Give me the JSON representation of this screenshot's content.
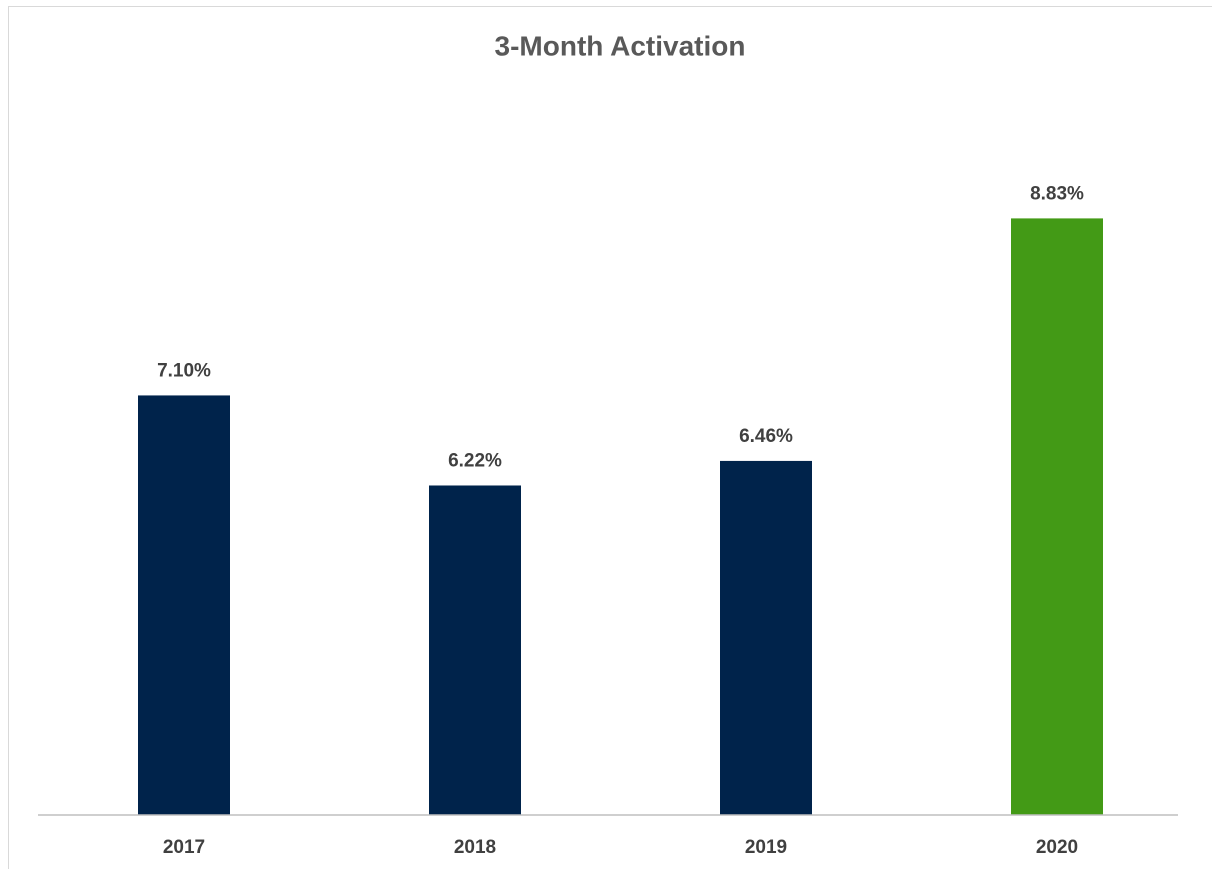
{
  "chart_data": {
    "type": "bar",
    "title": "3-Month Activation",
    "categories": [
      "2017",
      "2018",
      "2019",
      "2020"
    ],
    "values": [
      7.1,
      6.22,
      6.46,
      8.83
    ],
    "value_labels": [
      "7.10%",
      "6.22%",
      "6.46%",
      "8.83%"
    ],
    "colors": [
      "#00234b",
      "#00234b",
      "#00234b",
      "#439a16"
    ],
    "ylim": [
      3,
      9
    ]
  }
}
